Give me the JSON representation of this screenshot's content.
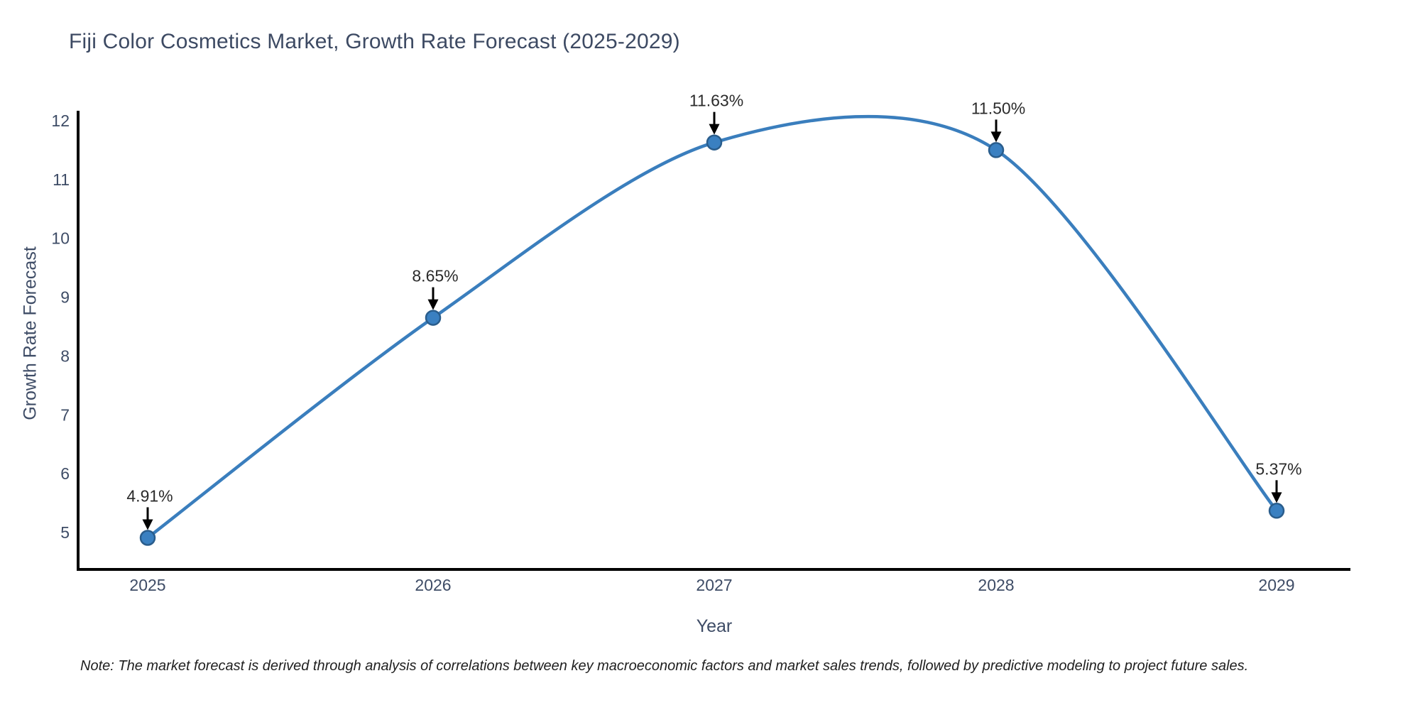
{
  "chart_data": {
    "type": "line",
    "title": "Fiji Color Cosmetics Market, Growth Rate Forecast (2025-2029)",
    "xlabel": "Year",
    "ylabel": "Growth Rate Forecast",
    "categories": [
      "2025",
      "2026",
      "2027",
      "2028",
      "2029"
    ],
    "series": [
      {
        "name": "Growth Rate Forecast",
        "values": [
          4.91,
          8.65,
          11.63,
          11.5,
          5.37
        ]
      }
    ],
    "point_labels": [
      "4.91%",
      "8.65%",
      "11.63%",
      "11.50%",
      "5.37%"
    ],
    "yticks": [
      "5",
      "6",
      "7",
      "8",
      "9",
      "10",
      "11",
      "12"
    ],
    "ytick_values": [
      5,
      6,
      7,
      8,
      9,
      10,
      11,
      12
    ],
    "ylim": [
      4.37,
      12.15
    ],
    "grid": false,
    "legend_position": "none",
    "line_shape": "smooth-spline",
    "marker": "circle",
    "annotation_style": "value-label-with-down-arrow",
    "colors": {
      "line": "#3a7ebd",
      "marker_fill": "#3a80c1",
      "marker_edge": "#2a5d8c",
      "axis_spine": "#000000",
      "arrow": "#000000",
      "annotation_text": "#2b2b2b",
      "tick_text": "#3e4c66",
      "title_text": "#3d4a63",
      "axis_label_text": "#3e4c66",
      "note_text": "#1f1f1f",
      "background": "#ffffff"
    },
    "note": "Note: The market forecast is derived through analysis of correlations between key macroeconomic factors and market sales trends, followed by predictive modeling to project future sales."
  }
}
